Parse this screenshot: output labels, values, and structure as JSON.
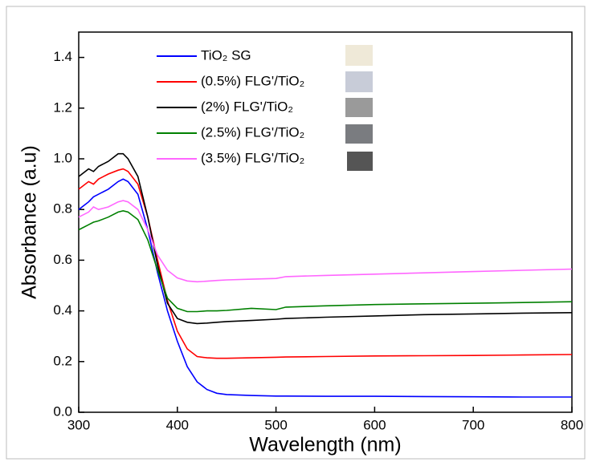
{
  "chart_data": {
    "type": "line",
    "xlabel": "Wavelength (nm)",
    "ylabel": "Absorbance (a.u)",
    "x": [
      300,
      310,
      315,
      320,
      330,
      340,
      345,
      350,
      360,
      370,
      380,
      390,
      400,
      410,
      420,
      430,
      440,
      450,
      475,
      500,
      510,
      550,
      600,
      650,
      700,
      750,
      800
    ],
    "series": [
      {
        "name": "TiO₂ SG",
        "color": "#0000ff",
        "values": [
          0.8,
          0.83,
          0.85,
          0.86,
          0.88,
          0.91,
          0.92,
          0.91,
          0.86,
          0.72,
          0.55,
          0.4,
          0.28,
          0.18,
          0.12,
          0.09,
          0.075,
          0.07,
          0.066,
          0.064,
          0.064,
          0.063,
          0.063,
          0.062,
          0.061,
          0.06,
          0.06
        ]
      },
      {
        "name": "(0.5%) FLG'/TiO₂",
        "color": "#ff0000",
        "values": [
          0.88,
          0.91,
          0.9,
          0.92,
          0.94,
          0.955,
          0.96,
          0.95,
          0.9,
          0.77,
          0.6,
          0.44,
          0.32,
          0.25,
          0.22,
          0.215,
          0.213,
          0.213,
          0.215,
          0.217,
          0.218,
          0.22,
          0.222,
          0.223,
          0.224,
          0.226,
          0.228
        ]
      },
      {
        "name": "(2%) FLG'/TiO₂",
        "color": "#000000",
        "values": [
          0.93,
          0.96,
          0.95,
          0.97,
          0.99,
          1.02,
          1.02,
          1.0,
          0.93,
          0.77,
          0.58,
          0.43,
          0.37,
          0.355,
          0.35,
          0.352,
          0.355,
          0.358,
          0.362,
          0.367,
          0.37,
          0.375,
          0.38,
          0.385,
          0.388,
          0.391,
          0.393
        ]
      },
      {
        "name": "(2.5%) FLG'/TiO₂",
        "color": "#008000",
        "values": [
          0.72,
          0.74,
          0.75,
          0.755,
          0.77,
          0.79,
          0.795,
          0.79,
          0.76,
          0.68,
          0.56,
          0.45,
          0.41,
          0.397,
          0.397,
          0.4,
          0.4,
          0.402,
          0.41,
          0.405,
          0.415,
          0.42,
          0.425,
          0.428,
          0.43,
          0.433,
          0.436
        ]
      },
      {
        "name": "(3.5%) FLG'/TiO₂",
        "color": "#ff66ff",
        "values": [
          0.77,
          0.79,
          0.81,
          0.8,
          0.81,
          0.83,
          0.835,
          0.83,
          0.8,
          0.72,
          0.62,
          0.56,
          0.53,
          0.518,
          0.515,
          0.517,
          0.52,
          0.522,
          0.525,
          0.528,
          0.535,
          0.54,
          0.545,
          0.55,
          0.555,
          0.56,
          0.565
        ]
      }
    ],
    "xlim": [
      300,
      800
    ],
    "xticks": [
      300,
      400,
      500,
      600,
      700,
      800
    ],
    "ylim": [
      0,
      1.5
    ],
    "yticks": [
      {
        "value": 0,
        "label": "0.0"
      },
      0.2,
      0.4,
      0.6,
      0.8,
      {
        "value": 1,
        "label": "1.0"
      },
      1.2,
      1.4
    ]
  }
}
